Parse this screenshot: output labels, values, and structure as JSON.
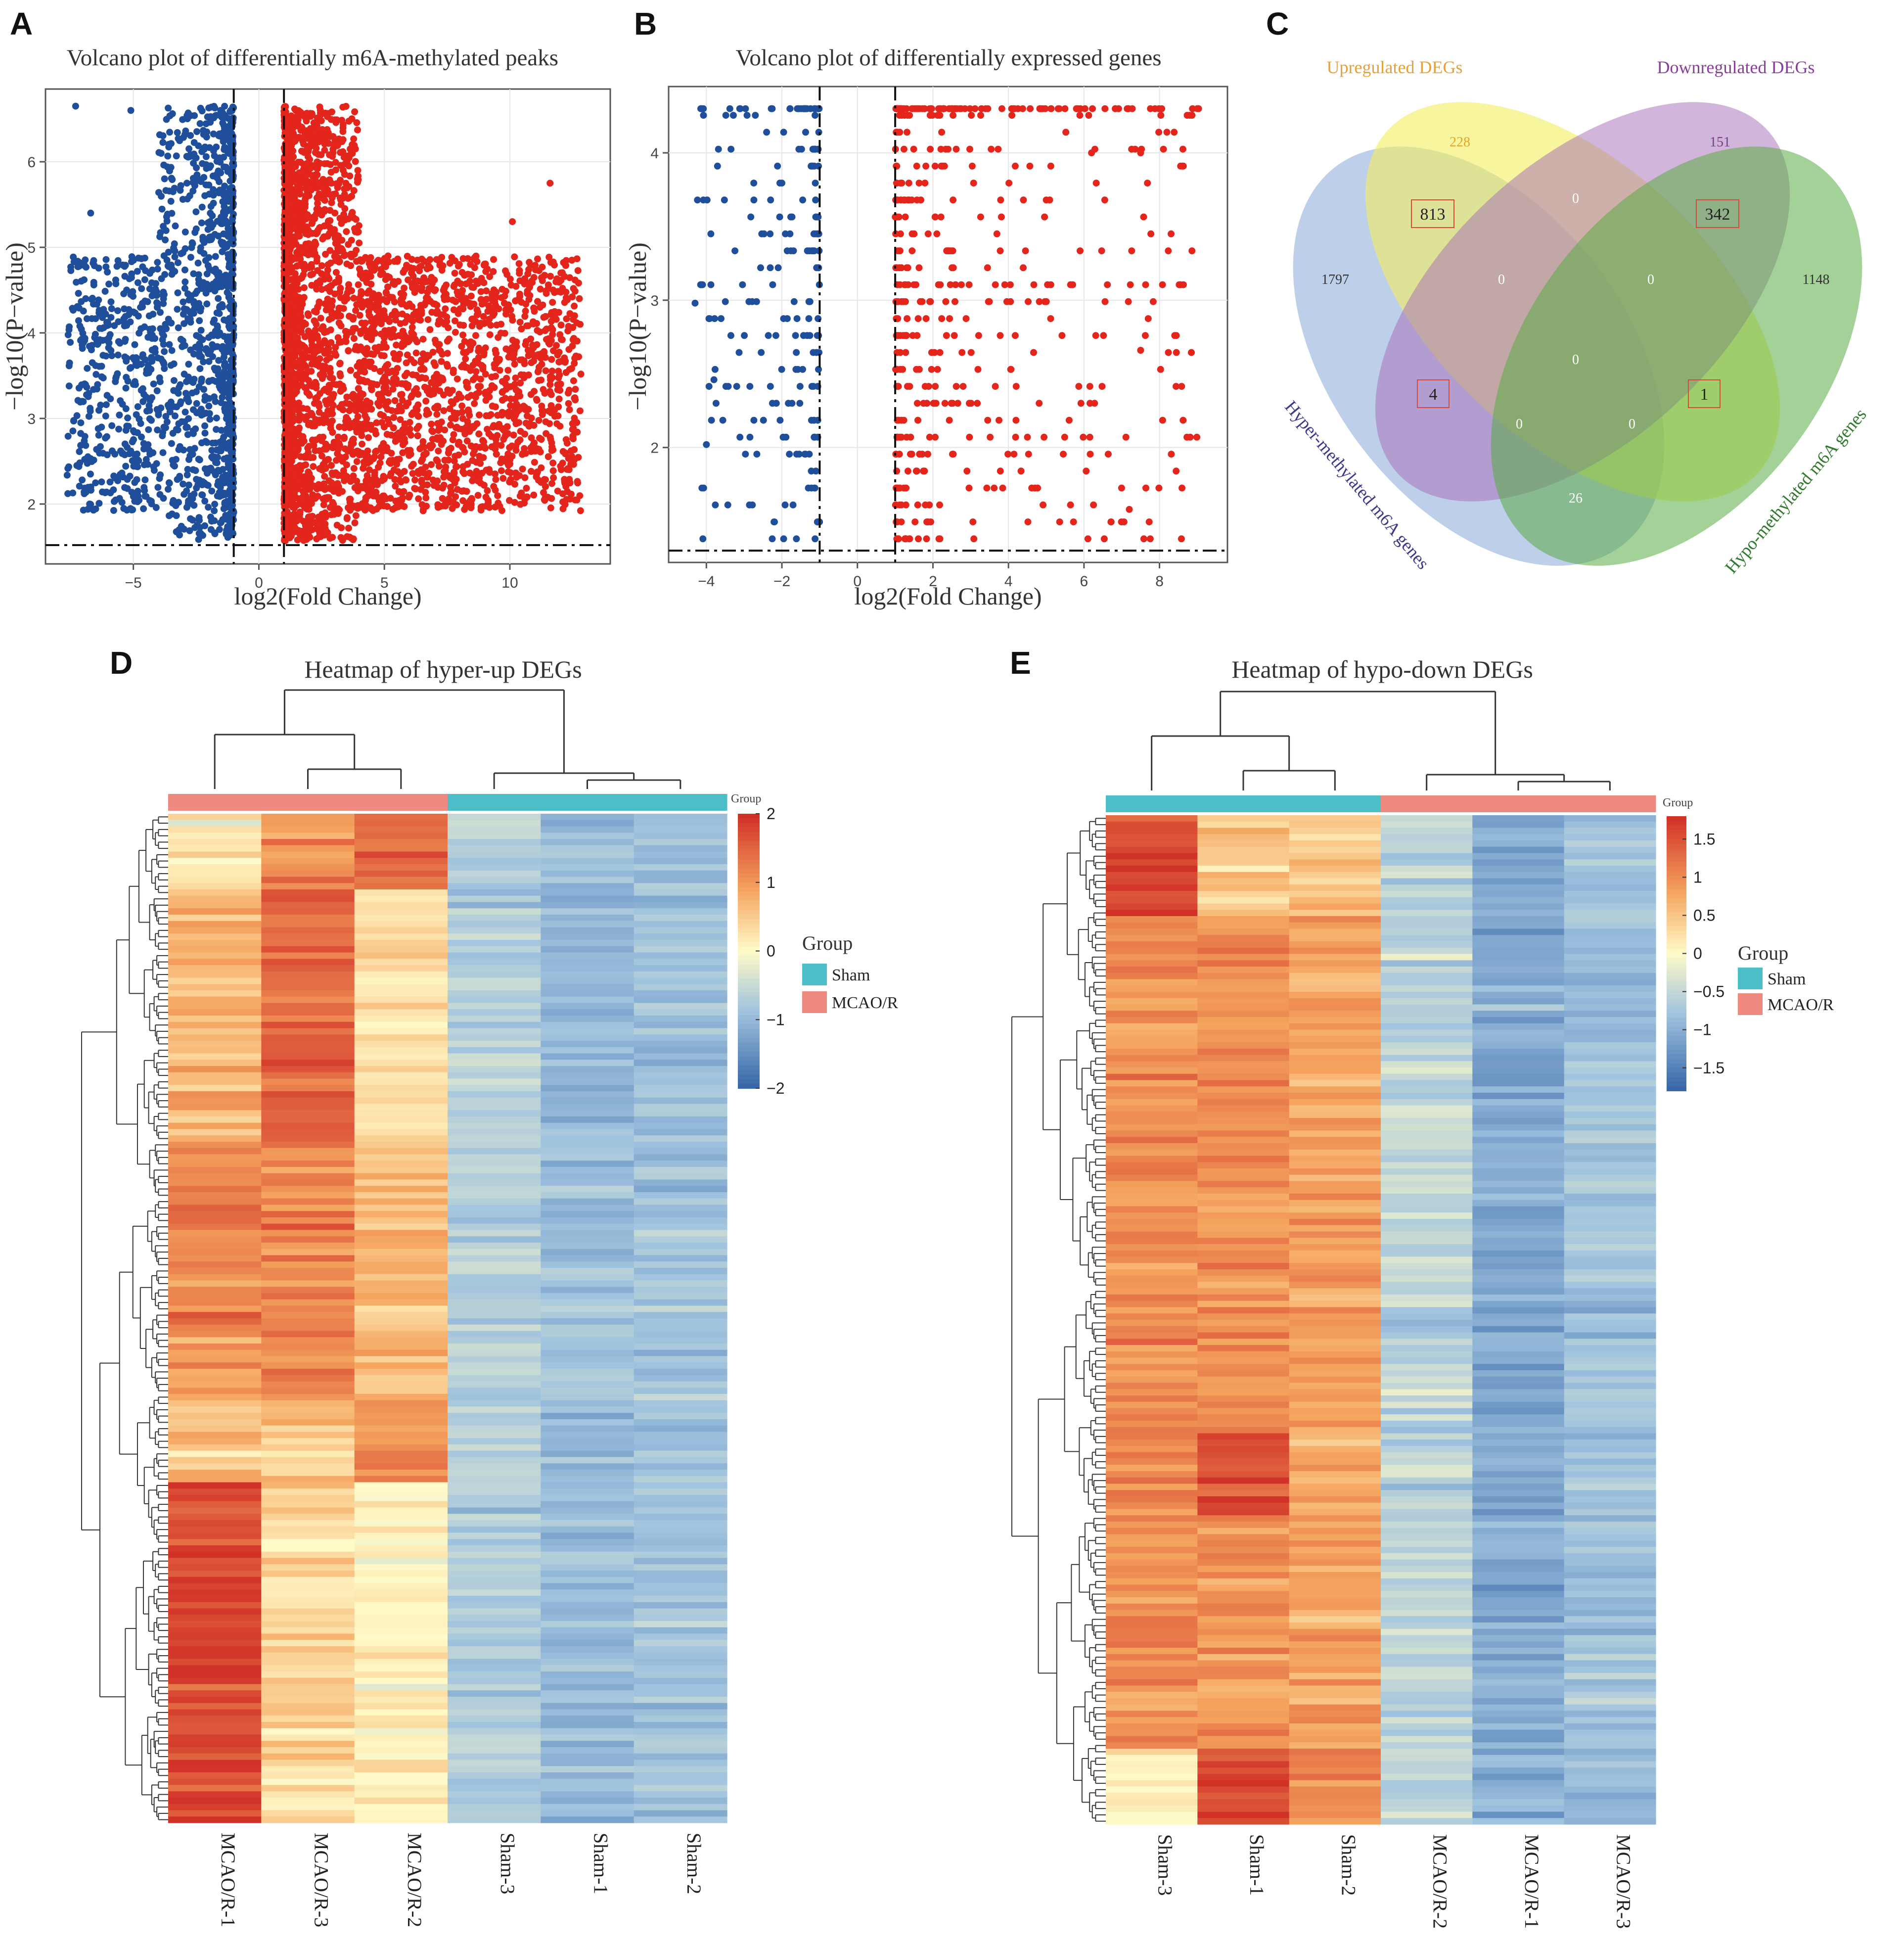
{
  "colors": {
    "down": "#1f4e9b",
    "up": "#e3251c",
    "sham": "#4cbec7",
    "mcao": "#ef8a80",
    "hyper": "#a8bfe3",
    "upDEG": "#f2ee5e",
    "downDEG": "#a56cb5",
    "hypo": "#5aab44"
  },
  "panels": {
    "A": "A",
    "B": "B",
    "C": "C",
    "D": "D",
    "E": "E"
  },
  "chart_data": [
    {
      "id": "A",
      "type": "scatter",
      "title": "Volcano plot of differentially m6A-methylated peaks",
      "xlabel": "log2(Fold Change)",
      "ylabel": "−log10(P−value)",
      "xlim": [
        -8.5,
        14
      ],
      "ylim": [
        1.3,
        6.85
      ],
      "xticks": [
        -5,
        0,
        5,
        10
      ],
      "yticks": [
        2,
        3,
        4,
        5,
        6
      ],
      "fc_threshold": [
        -1,
        1
      ],
      "p_threshold": 1.52,
      "series": [
        {
          "name": "down",
          "color": "#1f4e9b",
          "xrange": [
            -7.6,
            -0.9
          ],
          "dense_edge": -1.0,
          "ymax": 6.65
        },
        {
          "name": "up",
          "color": "#e3251c",
          "xrange": [
            1.0,
            12.8
          ],
          "dense_edge": 1.0,
          "ymax": 6.65
        }
      ],
      "outliers": [
        [
          -7.3,
          6.65
        ],
        [
          -6.7,
          5.4
        ],
        [
          -6.9,
          4.4
        ],
        [
          -5.1,
          6.6
        ],
        [
          12.8,
          4.1
        ],
        [
          11.6,
          5.75
        ],
        [
          10.1,
          5.3
        ],
        [
          11.2,
          4.3
        ]
      ]
    },
    {
      "id": "B",
      "type": "scatter",
      "title": "Volcano plot of differentially expressed genes",
      "xlabel": "log2(Fold Change)",
      "ylabel": "−log10(P−value)",
      "xlim": [
        -5,
        9.8
      ],
      "ylim": [
        1.22,
        4.45
      ],
      "xticks": [
        -4,
        -2,
        0,
        2,
        4,
        6,
        8
      ],
      "yticks": [
        2,
        3,
        4
      ],
      "fc_threshold": [
        -1,
        1
      ],
      "p_threshold": 1.3,
      "series": [
        {
          "name": "down",
          "color": "#1f4e9b",
          "xrange": [
            -4.2,
            -1.0
          ],
          "ymax": 4.3
        },
        {
          "name": "up",
          "color": "#e3251c",
          "xrange": [
            1.0,
            9.0
          ],
          "ymax": 4.3
        }
      ],
      "outliers": [
        [
          -4.3,
          2.98
        ],
        [
          -4.0,
          2.02
        ],
        [
          -3.8,
          2.46
        ],
        [
          9.0,
          4.3
        ],
        [
          7.5,
          4.0
        ],
        [
          7.5,
          2.66
        ],
        [
          7.2,
          1.58
        ],
        [
          6.2,
          4.0
        ]
      ]
    },
    {
      "id": "C",
      "type": "venn",
      "sets": [
        "Hyper-methylated m6A genes",
        "Upregulated DEGs",
        "Downregulated DEGs",
        "Hypo-methylated m6A genes"
      ],
      "regions": {
        "hyper_only": "1797",
        "up_only": "228",
        "down_only": "151",
        "hypo_only": "1148",
        "hyper_up": "813",
        "up_down": "0",
        "down_hypo": "342",
        "hyper_up_down": "0",
        "up_down_hypo": "0",
        "center": "0",
        "hyper_down": "4",
        "up_hypo": "1",
        "hyper_down_hypo": "0",
        "hyper_up_hypo": "0",
        "hyper_hypo": "26"
      },
      "highlighted": [
        "813",
        "342",
        "4",
        "1"
      ]
    },
    {
      "id": "D",
      "type": "heatmap",
      "title": "Heatmap of hyper-up DEGs",
      "columns": [
        "MCAO/R-1",
        "MCAO/R-3",
        "MCAO/R-2",
        "Sham-3",
        "Sham-1",
        "Sham-2"
      ],
      "column_groups": [
        "MCAO/R",
        "MCAO/R",
        "MCAO/R",
        "Sham",
        "Sham",
        "Sham"
      ],
      "colorbar": {
        "min": -2,
        "max": 2,
        "ticks": [
          "2",
          "1",
          "0",
          "−1",
          "−2"
        ]
      },
      "legend": {
        "title": "Group",
        "items": [
          "Sham",
          "MCAO/R"
        ],
        "bar_label": "Group"
      },
      "rows": 160
    },
    {
      "id": "E",
      "type": "heatmap",
      "title": "Heatmap of hypo-down DEGs",
      "columns": [
        "Sham-3",
        "Sham-1",
        "Sham-2",
        "MCAO/R-2",
        "MCAO/R-1",
        "MCAO/R-3"
      ],
      "column_groups": [
        "Sham",
        "Sham",
        "Sham",
        "MCAO/R",
        "MCAO/R",
        "MCAO/R"
      ],
      "colorbar": {
        "min": -1.8,
        "max": 1.8,
        "ticks": [
          "1.5",
          "1",
          "0.5",
          "0",
          "−0.5",
          "−1",
          "−1.5"
        ]
      },
      "legend": {
        "title": "Group",
        "items": [
          "Sham",
          "MCAO/R"
        ],
        "bar_label": "Group"
      },
      "rows": 160
    }
  ]
}
